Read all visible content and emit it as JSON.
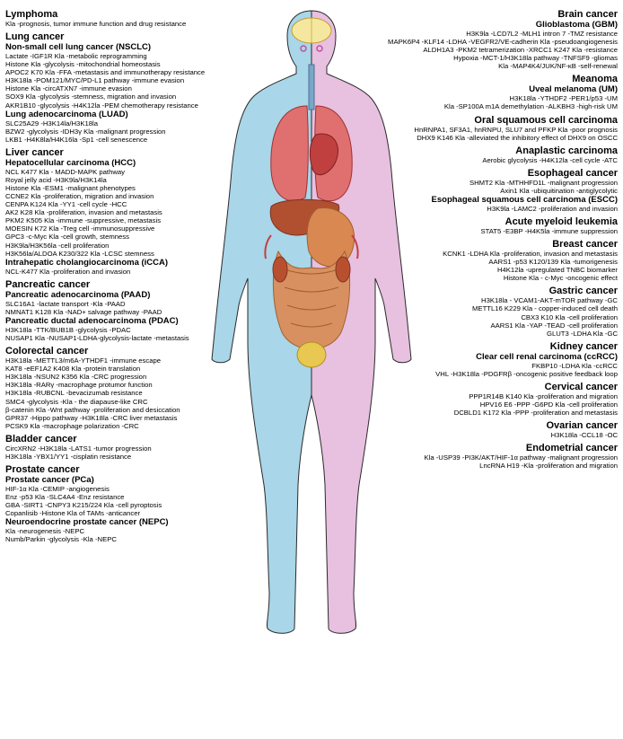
{
  "figure": {
    "body_left_fill": "#a9d6e8",
    "body_right_fill": "#e8c0e0",
    "outline": "#2a2a2a",
    "brain_fill": "#f5e7a0",
    "lung_fill": "#e07070",
    "heart_fill": "#c04040",
    "liver_fill": "#b05030",
    "stomach_fill": "#d88850",
    "intestine_fill": "#d89060",
    "kidney_fill": "#b85030",
    "bladder_fill": "#e8c850",
    "eye_color": "#c050a0"
  },
  "typography": {
    "heading_size": 11,
    "sub_size": 9.5,
    "line_size": 7.7
  },
  "left": [
    {
      "heading": "Lymphoma",
      "items": [
        "Kla -prognosis, tumor immune function and drug resistance"
      ]
    },
    {
      "heading": "Lung cancer",
      "subs": [
        {
          "sub": "Non-small cell lung cancer (NSCLC)",
          "items": [
            "Lactate -IGF1R Kla -metabolic reprogramming",
            "Histone Kla -glycolysis -mitochondrial homeostasis",
            "APOC2 K70 Kla -FFA -metastasis and immunotherapy resistance",
            "H3K18la -POM121/MYC/PD-L1 pathway -immune evasion",
            "Histone Kla -circATXN7 -immune evasion",
            "SOX9 Kla -glycolysis -stemness, migration and invasion",
            "AKR1B10 -glycolysis -H4K12la -PEM chemotherapy resistance"
          ]
        },
        {
          "sub": "Lung adenocarcinoma (LUAD)",
          "items": [
            "SLC25A29 -H3K14la/H3K18la",
            "BZW2 -glycolysis -IDH3γ Kla -malignant progression",
            "LKB1 -H4K8la/H4K16la -Sp1 -cell senescence"
          ]
        }
      ]
    },
    {
      "heading": "Liver cancer",
      "subs": [
        {
          "sub": "Hepatocellular carcinoma (HCC)",
          "items": [
            "NCL K477 Kla - MADD-MAPK pathway",
            "Royal jelly acid -H3K9la/H3K14la",
            "Histone Kla -ESM1 -malignant phenotypes",
            "CCNE2 Kla -proliferation, migration and invasion",
            "CENPA K124 Kla -YY1 -cell cycle -HCC",
            "AK2 K28 Kla -proliferation, invasion and metastasis",
            "PKM2 K505 Kla -immune -suppressive, metastasis",
            "MOESIN K72 Kla -Treg cell -immunosuppressive",
            "GPC3 -c-Myc Kla -cell growth, stemness",
            "H3K9la/H3K56la -cell proliferation",
            "H3K56la/ALDOA K230/322 Kla -LCSC stemness"
          ]
        },
        {
          "sub": "Intrahepatic cholangiocarcinoma (iCCA)",
          "items": [
            "NCL-K477 Kla -proliferation and invasion"
          ]
        }
      ]
    },
    {
      "heading": "Pancreatic cancer",
      "subs": [
        {
          "sub": "Pancreatic adenocarcinoma (PAAD)",
          "items": [
            "SLC16A1 -lactate transport -Kla -PAAD",
            "NMNAT1 K128 Kla -NAD+ salvage pathway -PAAD"
          ]
        },
        {
          "sub": "Pancreatic ductal adenocarcinoma (PDAC)",
          "items": [
            "H3K18la -TTK/BUB1B -glycolysis -PDAC",
            "NUSAP1 Kla -NUSAP1-LDHA-glycolysis-lactate -metastasis"
          ]
        }
      ]
    },
    {
      "heading": "Colorectal cancer",
      "items": [
        "H3K18la -METTL3/m6A-YTHDF1 -immune escape",
        "KAT8 -eEF1A2 K408 Kla -protein translation",
        "H3K18la -NSUN2 K356 Kla -CRC progression",
        "H3K18la -RARγ -macrophage protumor function",
        "H3K18la -RUBCNL -bevacizumab resistance",
        "SMC4 -glycolysis -Kla - the diapause-like CRC",
        "β-catenin Kla -Wnt pathway -proliferation and desiccation",
        "GPR37 -Hippo pathway -H3K18la -CRC liver metastasis",
        "PCSK9 Kla -macrophage polarization -CRC"
      ]
    },
    {
      "heading": "Bladder cancer",
      "items": [
        "CircXRN2 -H3K18la -LATS1 -tumor progression",
        "H3K18la -YBX1/YY1 -cisplatin resistance"
      ]
    },
    {
      "heading": "Prostate cancer",
      "subs": [
        {
          "sub": "Prostate cancer (PCa)",
          "items": [
            "HIF-1α Kla -CEMIP -angiogenesis",
            "Enz -p53  Kla -SLC4A4 -Enz resistance",
            "GBA -SIRT1 -CNPY3 K215/224 Kla -cell pyroptosis",
            "Copanlisib -Histone Kla of TAMs -anticancer"
          ]
        },
        {
          "sub": "Neuroendocrine prostate cancer (NEPC)",
          "items": [
            "Kla -neurogenesis -NEPC",
            "Numb/Parkin -glycolysis -Kla -NEPC"
          ]
        }
      ]
    }
  ],
  "right": [
    {
      "heading": "Brain cancer",
      "subs": [
        {
          "sub": "Glioblastoma (GBM)",
          "items": [
            "H3K9la -LCD7L2 -MLH1 intron 7 -TMZ resistance",
            "MAPK6P4 -KLF14 -LDHA -VEGFR2/VE-cadherin Kla -pseudoangiogenesis",
            "ALDH1A3 -PKM2 tetramerization -XRCC1 K247 Kla -resistance",
            "Hypoxia -MCT-1/H3K18la pathway -TNFSF9 -gliomas",
            "Kla -MAP4K4/JUK/NF-κB -self-renewal"
          ]
        }
      ]
    },
    {
      "heading": "Meanoma",
      "subs": [
        {
          "sub": "Uveal melanoma (UM)",
          "items": [
            "H3K18la -YTHDF2 -PER1/p53 -UM",
            "Kla -SP100A m1A demethylation -ALKBH3 -high-risk UM"
          ]
        }
      ]
    },
    {
      "heading": "Oral squamous cell carcinoma",
      "items": [
        "HnRNPA1, SF3A1, hnRNPU, SLU7 and PFKP Kla -poor prognosis",
        "DHX9 K146 Kla -alleviated the inhibitory effect of DHX9 on OSCC"
      ]
    },
    {
      "heading": "Anaplastic carcinoma",
      "items": [
        "Aerobic glycolysis -H4K12la -cell cycle -ATC"
      ]
    },
    {
      "heading": "Esophageal cancer",
      "items": [
        "SHMT2 Kla -MTHHFD1L -malignant progression",
        "Axin1 Kla -ubiquitination -antiglycolytic"
      ],
      "subs": [
        {
          "sub": "Esophageal squamous cell carcinoma (ESCC)",
          "items": [
            "H3K9la -LAMC2 -proliferation and invasion"
          ]
        }
      ]
    },
    {
      "heading": "Acute myeloid leukemia",
      "items": [
        "STAT5 -E3BP -H4K5la -immune suppression"
      ]
    },
    {
      "heading": "Breast cancer",
      "items": [
        "KCNK1 -LDHA Kla -proliferation, invasion and metastasis",
        "AARS1 -p53 K120/139 Kla -tumorigenesis",
        "H4K12la -upregulated TNBC biomarker",
        "Histone Kla - c-Myc -oncogenic effect"
      ]
    },
    {
      "heading": "Gastric cancer",
      "items": [
        "H3K18la - VCAM1-AKT-mTOR pathway -GC",
        "METTL16 K229 Kla - copper-induced cell death",
        "CBX3 K10 Kla -cell proliferation",
        "AARS1 Kla -YAP -TEAD -cell proliferation",
        "GLUT3 -LDHA Kla -GC"
      ]
    },
    {
      "heading": "Kidney cancer",
      "subs": [
        {
          "sub": "Clear cell renal carcinoma (ccRCC)",
          "items": [
            "FKBP10 -LDHA Kla -ccRCC",
            "VHL -H3K18la -PDGFRβ -oncogenic positive feedback loop"
          ]
        }
      ]
    },
    {
      "heading": "Cervical cancer",
      "items": [
        "PPP1R14B K140 Kla -proliferation and migration",
        "HPV16 E6 -PPP -G6PD Kla -cell proliferation",
        "DCBLD1 K172 Kla -PPP -proliferation and metastasis"
      ]
    },
    {
      "heading": "Ovarian cancer",
      "items": [
        "H3K18la -CCL18 -OC"
      ]
    },
    {
      "heading": "Endometrial cancer",
      "items": [
        "Kla -USP39 -PI3K/AKT/HIF-1α pathway -malignant progression",
        "LncRNA H19 -Kla -proliferation and migration"
      ]
    }
  ]
}
